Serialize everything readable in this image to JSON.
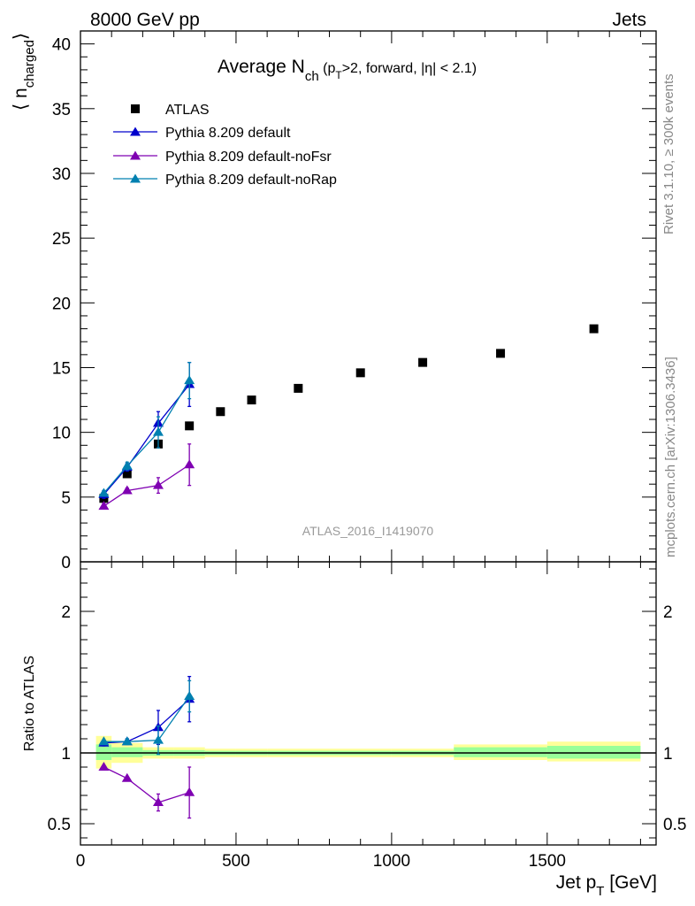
{
  "header": {
    "left": "8000 GeV pp",
    "right": "Jets"
  },
  "side_labels": {
    "rivet": "Rivet 3.1.10, ≥ 300k events",
    "mcplots": "mcplots.cern.ch [arXiv:1306.3436]"
  },
  "watermark": "ATLAS_2016_I1419070",
  "colors": {
    "data": "#000000",
    "default": "#0000cc",
    "noFsr": "#7f00b2",
    "noRap": "#0080b0",
    "band_inner": "#99ff99",
    "band_outer": "#ffff99"
  },
  "chart_data": [
    {
      "type": "scatter",
      "title": {
        "main": "Average N",
        "sub1": "ch",
        "mid": " (p",
        "sub2": "T",
        "rest": ">2, forward, |η| < 2.1)"
      },
      "ylabel": {
        "main": "⟨ n",
        "sub": "charged",
        "close": "⟩"
      },
      "xlabel": {
        "main": "Jet p",
        "sub": "T",
        "unit": " [GeV]"
      },
      "xlim": [
        0,
        1850
      ],
      "ylim": [
        0,
        41
      ],
      "x_ticks": [
        0,
        500,
        1000,
        1500
      ],
      "y_ticks": [
        0,
        5,
        10,
        15,
        20,
        25,
        30,
        35,
        40
      ],
      "legend_position": "top-left",
      "series": [
        {
          "key": "data",
          "name": "ATLAS",
          "marker": "square",
          "x": [
            75,
            150,
            250,
            350,
            450,
            550,
            700,
            900,
            1100,
            1350,
            1650
          ],
          "y": [
            4.9,
            6.8,
            9.1,
            10.5,
            11.6,
            12.5,
            13.4,
            14.6,
            15.4,
            16.1,
            18.0
          ]
        },
        {
          "key": "default",
          "name": "Pythia 8.209 default",
          "marker": "triangle",
          "x": [
            75,
            150,
            250,
            350
          ],
          "y": [
            5.2,
            7.3,
            10.7,
            13.7
          ],
          "err": [
            0.3,
            0.3,
            0.9,
            1.7
          ]
        },
        {
          "key": "noFsr",
          "name": "Pythia 8.209 default-noFsr",
          "marker": "triangle",
          "x": [
            75,
            150,
            250,
            350
          ],
          "y": [
            4.3,
            5.5,
            5.9,
            7.5
          ],
          "err": [
            0.2,
            0.2,
            0.6,
            1.6
          ]
        },
        {
          "key": "noRap",
          "name": "Pythia 8.209 default-noRap",
          "marker": "triangle",
          "x": [
            75,
            150,
            250,
            350
          ],
          "y": [
            5.3,
            7.4,
            10.0,
            14.0
          ],
          "err": [
            0.2,
            0.3,
            1.2,
            1.4
          ]
        }
      ]
    },
    {
      "type": "scatter",
      "ylabel": "Ratio to ATLAS",
      "xlim": [
        0,
        1850
      ],
      "ylim": [
        0.35,
        2.35
      ],
      "x_ticks": [
        0,
        500,
        1000,
        1500
      ],
      "y_ticks": [
        0.5,
        1,
        2
      ],
      "y_tick_labels": [
        "0.5",
        "1",
        "2"
      ],
      "reference_line": 1,
      "bands": {
        "edges": [
          50,
          100,
          200,
          300,
          400,
          500,
          600,
          800,
          1000,
          1200,
          1500,
          1800
        ],
        "outer": [
          [
            0.89,
            1.12
          ],
          [
            0.93,
            1.07
          ],
          [
            0.96,
            1.04
          ],
          [
            0.96,
            1.04
          ],
          [
            0.97,
            1.03
          ],
          [
            0.97,
            1.03
          ],
          [
            0.97,
            1.03
          ],
          [
            0.97,
            1.03
          ],
          [
            0.97,
            1.03
          ],
          [
            0.95,
            1.06
          ],
          [
            0.94,
            1.08
          ]
        ],
        "inner": [
          [
            0.95,
            1.06
          ],
          [
            0.97,
            1.04
          ],
          [
            0.98,
            1.02
          ],
          [
            0.98,
            1.02
          ],
          [
            0.985,
            1.015
          ],
          [
            0.985,
            1.015
          ],
          [
            0.985,
            1.015
          ],
          [
            0.985,
            1.015
          ],
          [
            0.985,
            1.015
          ],
          [
            0.97,
            1.04
          ],
          [
            0.96,
            1.05
          ]
        ]
      },
      "series": [
        {
          "key": "default",
          "name": "Pythia 8.209 default",
          "x": [
            75,
            150,
            250,
            350
          ],
          "y": [
            1.07,
            1.08,
            1.18,
            1.38
          ],
          "err": [
            0.02,
            0.02,
            0.12,
            0.16
          ]
        },
        {
          "key": "noFsr",
          "name": "Pythia 8.209 default-noFsr",
          "x": [
            75,
            150,
            250,
            350
          ],
          "y": [
            0.9,
            0.82,
            0.65,
            0.72
          ],
          "err": [
            0.01,
            0.01,
            0.06,
            0.18
          ]
        },
        {
          "key": "noRap",
          "name": "Pythia 8.209 default-noRap",
          "x": [
            75,
            150,
            250,
            350
          ],
          "y": [
            1.08,
            1.08,
            1.09,
            1.4
          ],
          "err": [
            0.01,
            0.02,
            0.1,
            0.11
          ]
        }
      ]
    }
  ]
}
